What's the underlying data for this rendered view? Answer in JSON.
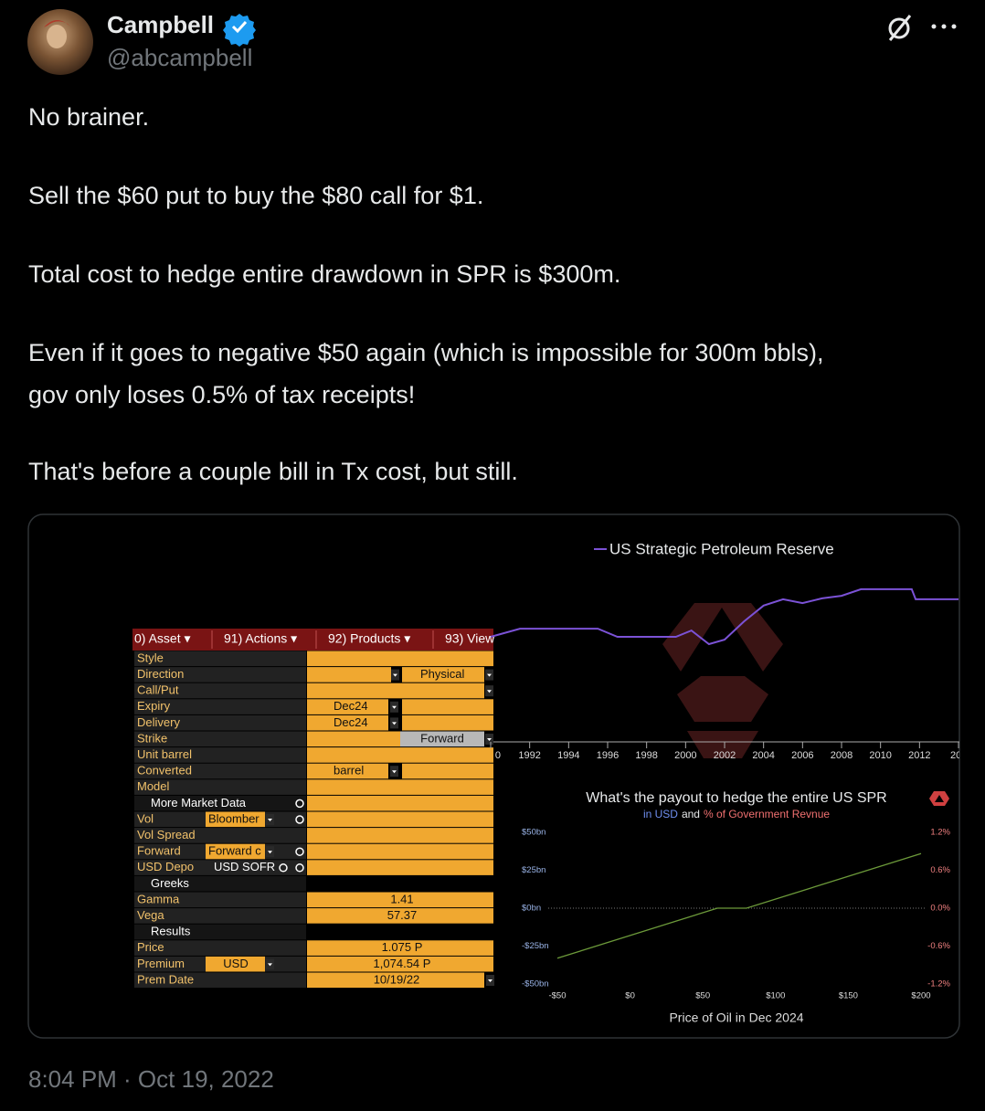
{
  "author": {
    "name": "Campbell",
    "handle": "@abcampbell"
  },
  "tweet": {
    "paragraphs": [
      [
        "No brainer."
      ],
      [
        "Sell the $60 put to buy the $80 call for $1."
      ],
      [
        "Total cost to hedge entire drawdown in SPR is $300m."
      ],
      [
        "Even if it goes to negative $50 again (which is impossible for 300m bbls),",
        "gov only loses 0.5% of tax receipts!"
      ],
      [
        "That's before a couple bill in Tx cost, but still."
      ]
    ]
  },
  "timestamp": "8:04 PM · Oct 19, 2022",
  "terminal": {
    "menu": [
      "0) Asset ▾",
      "91) Actions ▾",
      "92) Products ▾",
      "93) View"
    ],
    "rows": [
      {
        "label": "Style"
      },
      {
        "label": "Direction",
        "values": [
          "Physical"
        ]
      },
      {
        "label": "Call/Put"
      },
      {
        "label": "Expiry",
        "values": [
          "Dec24"
        ]
      },
      {
        "label": "Delivery",
        "values": [
          "Dec24"
        ]
      },
      {
        "label": "Strike",
        "values": [
          "Forward"
        ]
      },
      {
        "label": "Unit barrel"
      },
      {
        "label": "Converted",
        "values": [
          "barrel"
        ]
      },
      {
        "label": "Model"
      },
      {
        "label": "More Market Data"
      },
      {
        "label": "Vol",
        "values": [
          "Bloomber"
        ]
      },
      {
        "label": "Vol Spread"
      },
      {
        "label": "Forward",
        "values": [
          "Forward c"
        ]
      },
      {
        "label": "USD Depo",
        "values": [
          "USD SOFR"
        ]
      },
      {
        "label": "Greeks"
      },
      {
        "label": "Gamma",
        "values": [
          "1.41"
        ]
      },
      {
        "label": "Vega",
        "values": [
          "57.37"
        ]
      },
      {
        "label": "Results"
      },
      {
        "label": "Price",
        "values": [
          "1.075 P"
        ]
      },
      {
        "label": "Premium",
        "values": [
          "USD",
          "1,074.54 P"
        ]
      },
      {
        "label": "Prem Date",
        "values": [
          "10/19/22"
        ]
      }
    ]
  },
  "chart_data": [
    {
      "type": "line",
      "x": [
        1990,
        1991.5,
        1995.5,
        1996.5,
        1999.5,
        2000.3,
        2001.2,
        2002,
        2003,
        2004,
        2005,
        2006,
        2007,
        2008,
        2009,
        2011.6,
        2011.8,
        2014
      ],
      "series": [
        {
          "name": "US Strategic Petroleum Reserve",
          "color": "#7b52d6",
          "values": [
            577,
            603,
            603,
            577,
            577,
            597,
            554,
            568,
            626,
            676,
            696,
            684,
            699,
            707,
            728,
            728,
            696,
            696
          ]
        }
      ],
      "xlim": [
        1990,
        2014
      ],
      "ylim": [
        250,
        800
      ],
      "xticks": [
        {
          "value": 1990,
          "label": "0"
        },
        1992,
        1994,
        1996,
        1998,
        2000,
        2002,
        2004,
        2006,
        2008,
        2010,
        2012,
        {
          "value": 2014,
          "label": "20"
        }
      ]
    },
    {
      "type": "line",
      "title": "What's the payout to hedge the entire US SPR",
      "subtitle": [
        "in USD",
        "and",
        "% of Government Revnue"
      ],
      "x_label": "Price of Oil in Dec 2024",
      "x": [
        -50,
        60,
        80,
        200
      ],
      "values": [
        -33,
        0,
        0,
        36
      ],
      "color": "#6c9a3a",
      "xlim": [
        -50,
        200
      ],
      "ylim": [
        -50,
        50
      ],
      "y2lim": [
        -1.2,
        1.2
      ],
      "xticks": [
        {
          "value": -50,
          "label": "-$50"
        },
        {
          "value": 0,
          "label": "$0"
        },
        {
          "value": 50,
          "label": "$50"
        },
        {
          "value": 100,
          "label": "$100"
        },
        {
          "value": 150,
          "label": "$150"
        },
        {
          "value": 200,
          "label": "$200"
        }
      ],
      "yticks": [
        {
          "value": 50,
          "label": "$50bn"
        },
        {
          "value": 25,
          "label": "$25bn"
        },
        {
          "value": 0,
          "label": "$0bn"
        },
        {
          "value": -25,
          "label": "-$25bn"
        },
        {
          "value": -50,
          "label": "-$50bn"
        }
      ],
      "y2ticks": [
        {
          "value": 1.2,
          "label": "1.2%"
        },
        {
          "value": 0.6,
          "label": "0.6%"
        },
        {
          "value": 0,
          "label": "0.0%"
        },
        {
          "value": -0.6,
          "label": "-0.6%"
        },
        {
          "value": -1.2,
          "label": "-1.2%"
        }
      ]
    }
  ]
}
